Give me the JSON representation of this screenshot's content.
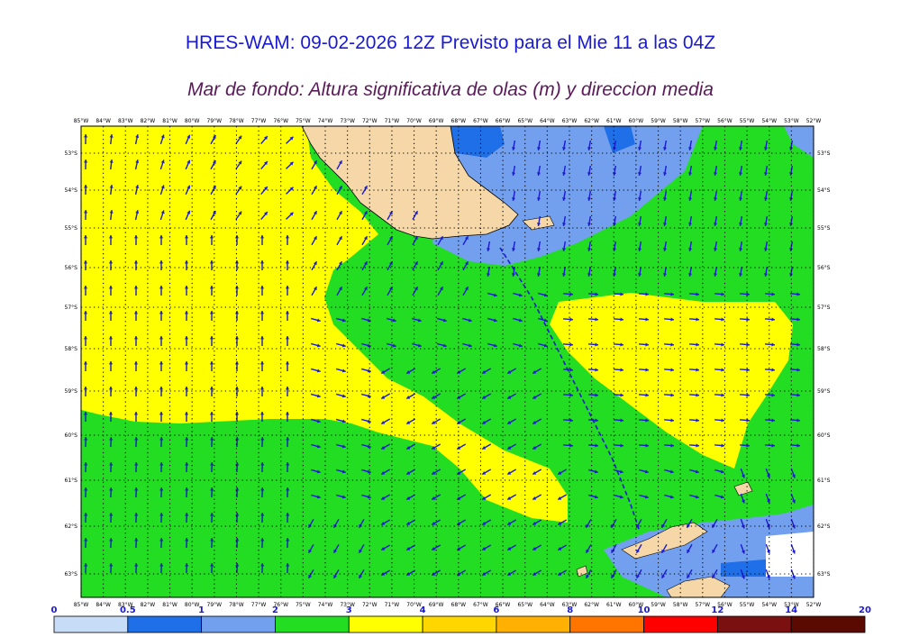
{
  "header": {
    "title": "HRES-WAM: 09-02-2026 12Z Previsto para el Mie 11 a las 04Z",
    "subtitle": "Mar de fondo: Altura significativa de olas (m) y direccion media"
  },
  "map": {
    "lon_labels": [
      "85°W",
      "84°W",
      "83°W",
      "82°W",
      "81°W",
      "80°W",
      "79°W",
      "78°W",
      "77°W",
      "76°W",
      "75°W",
      "74°W",
      "73°W",
      "72°W",
      "71°W",
      "70°W",
      "69°W",
      "68°W",
      "67°W",
      "66°W",
      "65°W",
      "64°W",
      "63°W",
      "62°W",
      "61°W",
      "60°W",
      "59°W",
      "58°W",
      "57°W",
      "56°W",
      "55°W",
      "54°W",
      "53°W",
      "52°W"
    ],
    "lat_labels": [
      "53°S",
      "54°S",
      "55°S",
      "56°S",
      "57°S",
      "58°S",
      "59°S",
      "60°S",
      "61°S",
      "62°S",
      "63°S"
    ],
    "colors": {
      "land": "#f5d7a8",
      "ice": "#ffffff",
      "arrow": "#1a1ad0",
      "grid": "#000000"
    }
  },
  "legend": {
    "labels": [
      "0",
      "0.5",
      "1",
      "2",
      "3",
      "4",
      "6",
      "8",
      "10",
      "12",
      "14",
      "20"
    ],
    "colors": [
      "#c7ddf7",
      "#1f6fe8",
      "#72a0ee",
      "#22dd22",
      "#ffff00",
      "#ffd700",
      "#ffb000",
      "#ff7500",
      "#ff0000",
      "#7a1010",
      "#5a0a00",
      "#3a3a3a"
    ]
  }
}
